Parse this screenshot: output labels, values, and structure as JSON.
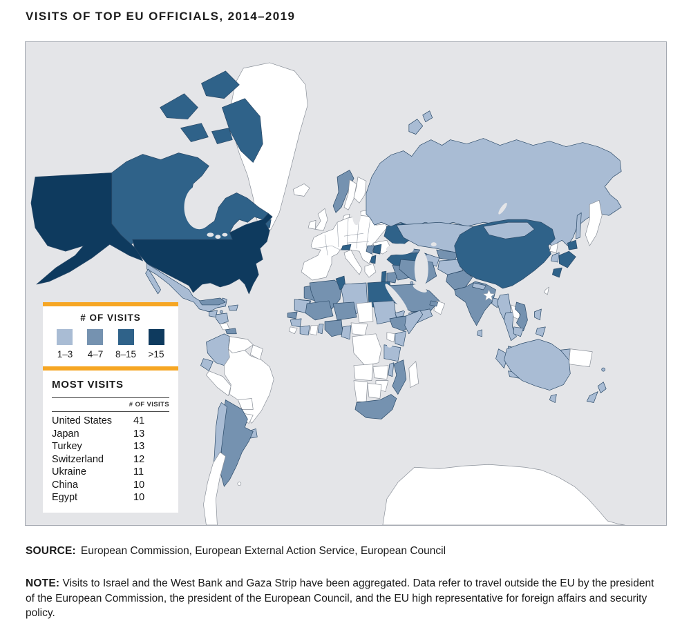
{
  "title": "VISITS OF TOP EU OFFICIALS, 2014–2019",
  "legend": {
    "title": "# OF VISITS",
    "bins": [
      {
        "label": "1–3",
        "color": "#a9bcd4"
      },
      {
        "label": "4–7",
        "color": "#7592b0"
      },
      {
        "label": "8–15",
        "color": "#2f6289"
      },
      {
        "label": ">15",
        "color": "#0e3a5e"
      }
    ]
  },
  "most_visits": {
    "title": "MOST VISITS",
    "value_header": "# OF VISITS",
    "rows": [
      {
        "country": "United States",
        "visits": "41"
      },
      {
        "country": "Japan",
        "visits": "13"
      },
      {
        "country": "Turkey",
        "visits": "13"
      },
      {
        "country": "Switzerland",
        "visits": "12"
      },
      {
        "country": "Ukraine",
        "visits": "11"
      },
      {
        "country": "China",
        "visits": "10"
      },
      {
        "country": "Egypt",
        "visits": "10"
      }
    ]
  },
  "source": {
    "label": "SOURCE:",
    "text": "European Commission, European External Action Service, European Council"
  },
  "note": {
    "label": "NOTE:",
    "text": "Visits to Israel and the West Bank and Gaza Strip have been aggregated. Data refer to travel outside the EU by the president of the European Commission, the president of the European Council, and the EU high representative for foreign affairs and security policy."
  },
  "colors": {
    "accent_orange": "#f6a623",
    "ocean": "#e4e5e8",
    "no_data": "#ffffff",
    "border_data": "#2b4a68",
    "border_no_data": "#8a9099"
  },
  "map": {
    "country_bins": {
      "united-states": 3,
      "canada": 2,
      "mexico": 0,
      "guatemala": 0,
      "honduras-nicaragua": 0,
      "panama": 1,
      "cuba": 1,
      "hispaniola": 0,
      "jamaica": 0,
      "colombia": 0,
      "ecuador": 0,
      "uruguay": 0,
      "argentina": 1,
      "chile": 0,
      "norway": 1,
      "switzerland": 2,
      "ukraine": 2,
      "serbia": 2,
      "bosnia": 1,
      "albania": 2,
      "turkey": 2,
      "russia": 0,
      "kazakhstan": 0,
      "mongolia": 0,
      "uzbekistan": 1,
      "turkmenistan": 0,
      "kyrgyzstan": 0,
      "tajikistan": 1,
      "georgia": 1,
      "azerbaijan": 1,
      "armenia": 0,
      "china": 2,
      "japan": 2,
      "south-korea": 0,
      "vietnam": 1,
      "thailand": 0,
      "cambodia": 0,
      "myanmar": 0,
      "malaysia": 0,
      "indonesia": 0,
      "philippines": 0,
      "india": 1,
      "pakistan": 1,
      "afghanistan": 0,
      "nepal": 0,
      "bangladesh": 0,
      "sri-lanka": 0,
      "iran": 1,
      "iraq": 1,
      "syria": 1,
      "israel": 2,
      "jordan": 1,
      "saudi-arabia": 1,
      "yemen": 0,
      "uae": 1,
      "kuwait": 0,
      "morocco": 1,
      "western-sahara": 0,
      "algeria": 1,
      "tunisia": 2,
      "libya": 0,
      "egypt": 2,
      "mauritania": 0,
      "mali": 1,
      "niger": 1,
      "sudan": 0,
      "senegal": 1,
      "guinea": 0,
      "cote-divoire": 0,
      "togo-benin": 0,
      "nigeria": 1,
      "cameroon": 0,
      "eritrea": 0,
      "ethiopia": 1,
      "somalia": 0,
      "kenya": 0,
      "tanzania": 0,
      "malawi": 0,
      "mozambique": 1,
      "south-africa": 1,
      "australia": 0,
      "new-zealand": 0,
      "new-caledonia": 0,
      "west-papua": 0,
      "sakhalin": 0
    }
  },
  "chart_data": {
    "type": "table",
    "title": "VISITS OF TOP EU OFFICIALS, 2014–2019",
    "legend_bins": [
      "1–3",
      "4–7",
      "8–15",
      ">15"
    ],
    "categories": [
      "United States",
      "Japan",
      "Turkey",
      "Switzerland",
      "Ukraine",
      "China",
      "Egypt"
    ],
    "values": [
      41,
      13,
      13,
      12,
      11,
      10,
      10
    ]
  }
}
